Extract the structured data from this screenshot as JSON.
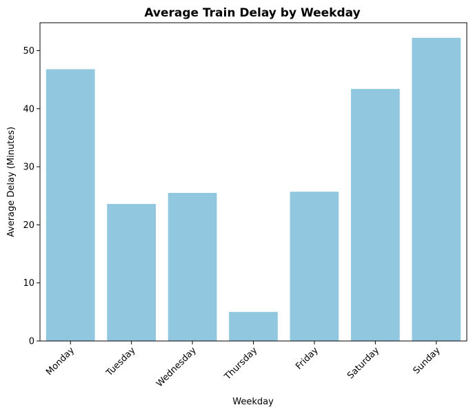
{
  "chart_data": {
    "type": "bar",
    "title": "Average Train Delay by Weekday",
    "xlabel": "Weekday",
    "ylabel": "Average Delay (Minutes)",
    "categories": [
      "Monday",
      "Tuesday",
      "Wednesday",
      "Thursday",
      "Friday",
      "Saturday",
      "Sunday"
    ],
    "values": [
      46.8,
      23.6,
      25.5,
      5.0,
      25.7,
      43.4,
      52.2
    ],
    "ylim": [
      0,
      54.8
    ],
    "yticks": [
      0,
      10,
      20,
      30,
      40,
      50
    ],
    "grid": false,
    "legend": "none",
    "bar_color": "#92c8df"
  }
}
